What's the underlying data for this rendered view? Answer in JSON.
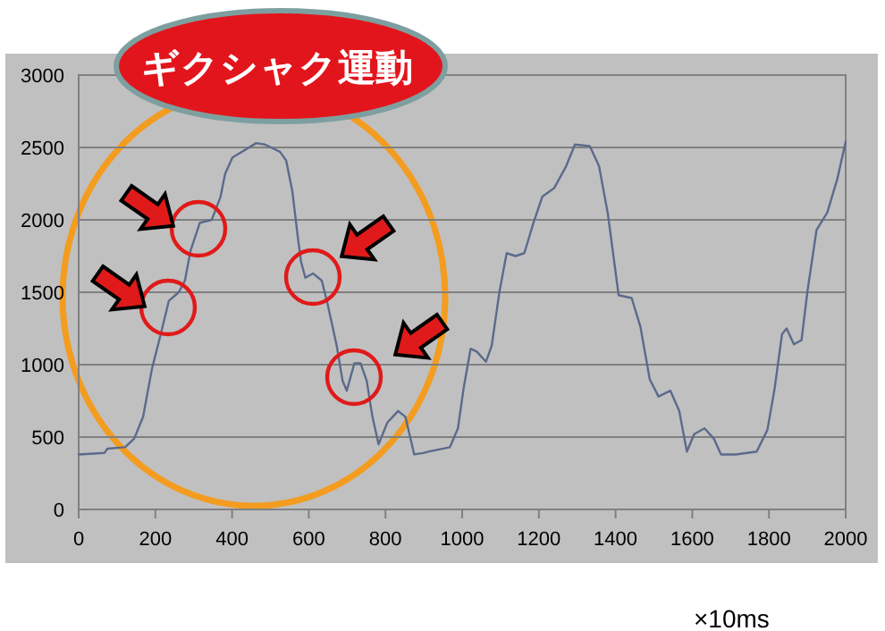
{
  "chart_data": {
    "type": "line",
    "x": [
      0,
      67,
      75,
      121,
      145,
      168,
      191,
      214,
      235,
      261,
      277,
      292,
      316,
      347,
      370,
      382,
      401,
      463,
      486,
      525,
      541,
      557,
      572,
      580,
      591,
      611,
      634,
      649,
      673,
      688,
      699,
      719,
      735,
      751,
      766,
      782,
      805,
      833,
      852,
      875,
      898,
      914,
      968,
      989,
      1004,
      1022,
      1038,
      1062,
      1077,
      1097,
      1116,
      1139,
      1162,
      1186,
      1209,
      1240,
      1271,
      1294,
      1333,
      1357,
      1380,
      1408,
      1442,
      1465,
      1489,
      1512,
      1543,
      1566,
      1586,
      1605,
      1632,
      1656,
      1675,
      1714,
      1768,
      1796,
      1815,
      1834,
      1846,
      1865,
      1885,
      1900,
      1924,
      1952,
      1978,
      2000
    ],
    "series": [
      {
        "color": "#5b6a8c",
        "values": [
          380,
          390,
          420,
          430,
          490,
          640,
          970,
          1210,
          1440,
          1500,
          1580,
          1790,
          1980,
          2000,
          2160,
          2320,
          2430,
          2530,
          2520,
          2470,
          2410,
          2200,
          1870,
          1710,
          1600,
          1630,
          1580,
          1420,
          1130,
          890,
          820,
          1010,
          1010,
          890,
          640,
          450,
          600,
          680,
          640,
          380,
          390,
          400,
          430,
          560,
          840,
          1110,
          1090,
          1020,
          1130,
          1500,
          1770,
          1750,
          1770,
          1980,
          2160,
          2220,
          2370,
          2520,
          2510,
          2370,
          2040,
          1480,
          1460,
          1260,
          900,
          780,
          820,
          680,
          400,
          520,
          560,
          490,
          380,
          380,
          400,
          550,
          840,
          1210,
          1250,
          1140,
          1170,
          1500,
          1930,
          2050,
          2280,
          2540
        ]
      }
    ],
    "xlim": [
      0,
      2000
    ],
    "ylim": [
      0,
      3000
    ],
    "xticks": [
      0,
      200,
      400,
      600,
      800,
      1000,
      1200,
      1400,
      1600,
      1800,
      2000
    ],
    "yticks": [
      0,
      500,
      1000,
      1500,
      2000,
      2500,
      3000
    ],
    "grid": "y",
    "marker": "none",
    "line_style": "solid",
    "annotations": [
      "ギクシャク運動",
      "×10ms"
    ]
  }
}
